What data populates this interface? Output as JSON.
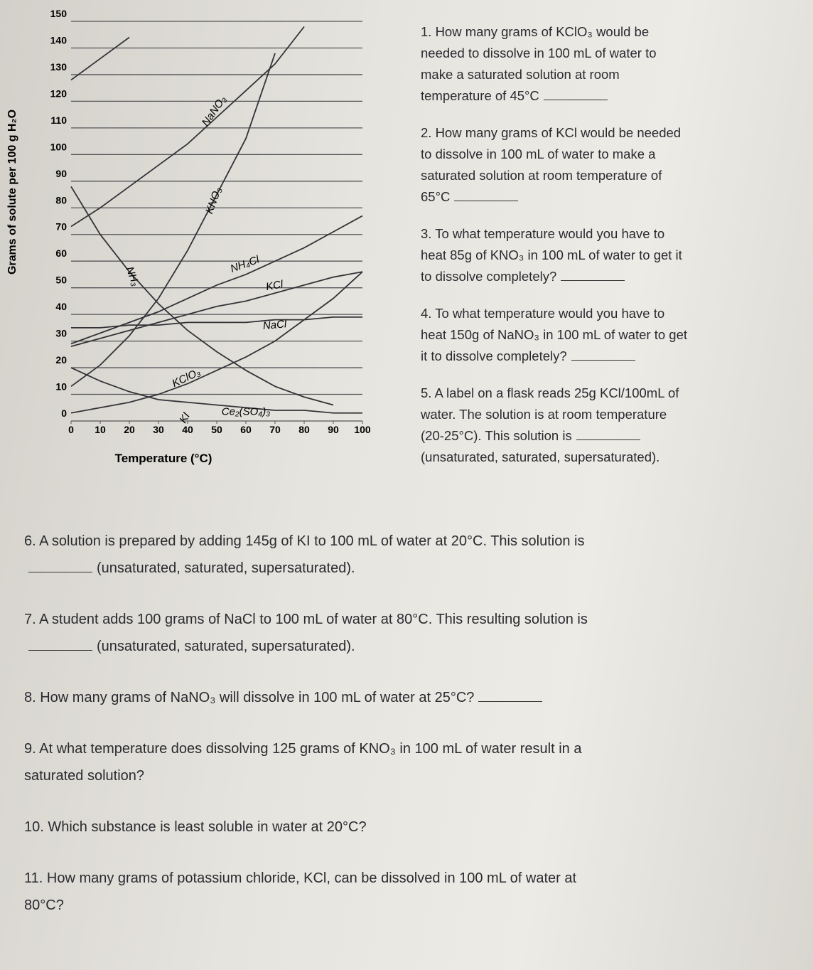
{
  "chart_data": {
    "type": "line",
    "x_label": "Temperature (°C)",
    "y_label": "Grams of solute per 100 g H₂O",
    "x": [
      0,
      10,
      20,
      30,
      40,
      50,
      60,
      70,
      80,
      90,
      100
    ],
    "xlim": [
      0,
      100
    ],
    "xticks": [
      0,
      10,
      20,
      30,
      40,
      50,
      60,
      70,
      80,
      90,
      100
    ],
    "ylim": [
      0,
      150
    ],
    "yticks": [
      0,
      10,
      20,
      30,
      40,
      50,
      60,
      70,
      80,
      90,
      100,
      110,
      120,
      130,
      140,
      150
    ],
    "grid": true,
    "series": [
      {
        "name": "KI",
        "color": "#333338",
        "values": [
          128,
          136,
          144,
          null,
          null,
          null,
          null,
          null,
          null,
          null,
          null
        ]
      },
      {
        "name": "NaNO₃",
        "color": "#333338",
        "values": [
          73,
          80,
          88,
          96,
          104,
          114,
          124,
          134,
          148,
          null,
          null
        ]
      },
      {
        "name": "KNO₃",
        "color": "#333338",
        "values": [
          13,
          21,
          32,
          46,
          64,
          85,
          106,
          138,
          null,
          null,
          null
        ]
      },
      {
        "name": "NH₃",
        "color": "#333338",
        "values": [
          88,
          70,
          56,
          44,
          34,
          26,
          19,
          13,
          9,
          6,
          null
        ]
      },
      {
        "name": "NH₄Cl",
        "color": "#333338",
        "values": [
          29,
          33,
          37,
          41,
          46,
          51,
          55,
          60,
          65,
          71,
          77
        ]
      },
      {
        "name": "KCl",
        "color": "#333338",
        "values": [
          28,
          31,
          34,
          37,
          40,
          43,
          45,
          48,
          51,
          54,
          56
        ]
      },
      {
        "name": "NaCl",
        "color": "#333338",
        "values": [
          35,
          35,
          36,
          36,
          37,
          37,
          37,
          38,
          38,
          39,
          39
        ]
      },
      {
        "name": "KClO₃",
        "color": "#333338",
        "values": [
          3,
          5,
          7,
          10,
          14,
          19,
          24,
          30,
          38,
          46,
          56
        ]
      },
      {
        "name": "Ce₂(SO₄)₃",
        "color": "#333338",
        "values": [
          20,
          15,
          11,
          8,
          7,
          6,
          5,
          4,
          4,
          3,
          3
        ]
      }
    ]
  },
  "side_questions": [
    [
      "1.  How many grams of KClO₃ would be",
      "needed to dissolve in 100 mL of water to",
      "make a saturated solution at room",
      "temperature of 45°C"
    ],
    [
      "2.  How many grams of KCl would be needed",
      "to dissolve in 100 mL of water to make a",
      "saturated solution at room temperature of",
      "65°C"
    ],
    [
      "3.  To what temperature would you have to",
      "heat 85g of KNO₃ in 100 mL of water to get it",
      "to dissolve completely?"
    ],
    [
      "4.  To what temperature would you have to",
      "heat 150g of NaNO₃ in 100 mL of water to get",
      "it to dissolve completely?"
    ],
    [
      "5.  A label on a flask reads 25g KCl/100mL of",
      "water.  The solution is at room temperature",
      "(20-25°C).  This solution is",
      "(unsaturated, saturated, supersaturated)."
    ]
  ],
  "bottom_questions": [
    [
      "6.   A solution is prepared by adding 145g of KI to 100 mL of water at 20°C.  This solution is",
      "(unsaturated, saturated, supersaturated)."
    ],
    [
      "7.  A student adds 100 grams of NaCl to 100 mL of water at 80°C.  This resulting solution is",
      "(unsaturated, saturated, supersaturated)."
    ],
    [
      "8.  How many grams of NaNO₃ will dissolve in 100 mL of water at 25°C?"
    ],
    [
      "9.  At what temperature does dissolving 125 grams of KNO₃ in 100 mL of water result in a",
      "saturated solution?"
    ],
    [
      "10.  Which substance is least soluble in water at 20°C?"
    ],
    [
      "11.  How many grams of potassium chloride, KCl, can be dissolved in 100 mL of water at",
      "80°C?"
    ]
  ]
}
